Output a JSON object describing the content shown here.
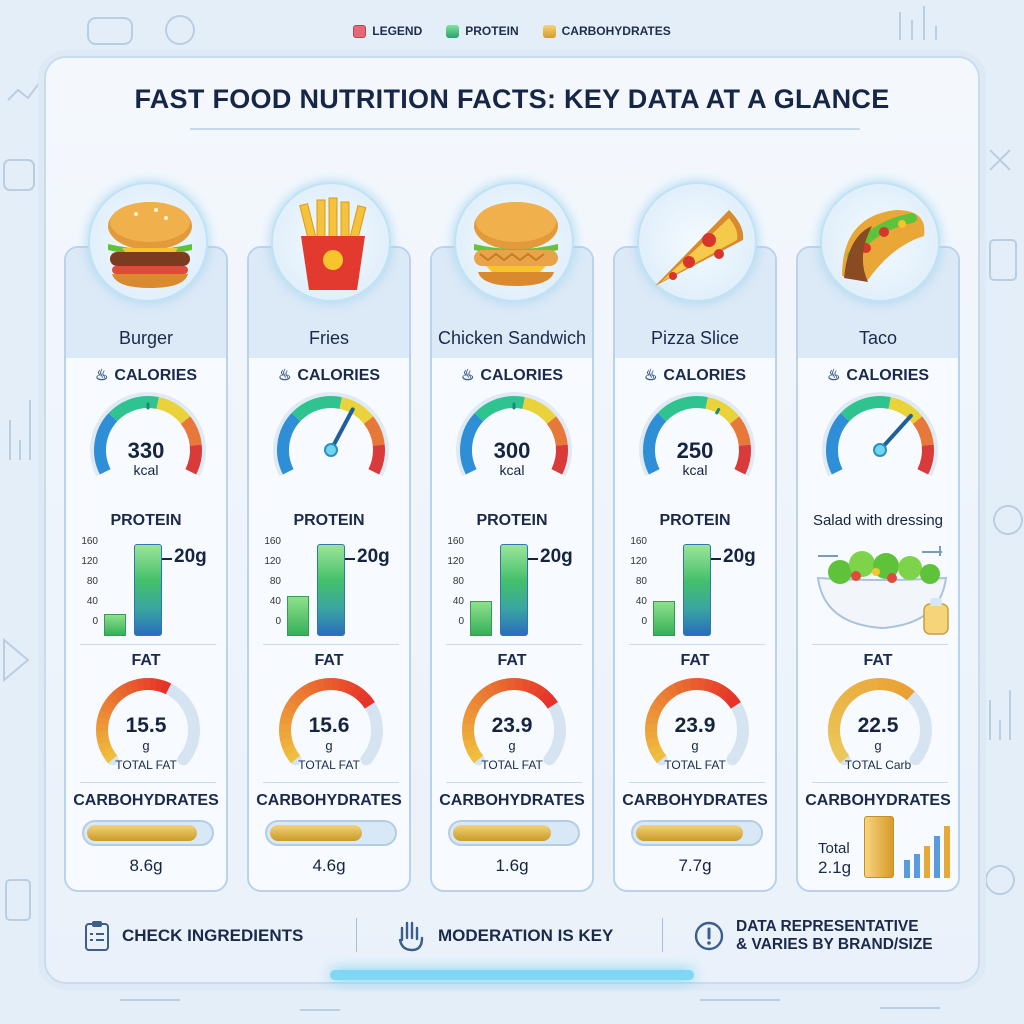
{
  "legend": [
    {
      "label": "LEGEND",
      "color": "#e06a7a"
    },
    {
      "label": "PROTEIN",
      "color": "#3cc07a"
    },
    {
      "label": "CARBOHYDRATES",
      "color": "#e8b84a"
    }
  ],
  "title": "FAST FOOD NUTRITION FACTS: KEY DATA AT A GLANCE",
  "labels": {
    "calories": "CALORIES",
    "protein": "PROTEIN",
    "fat": "FAT",
    "carbohydrates": "CARBOHYDRATES",
    "kcal": "kcal",
    "g": "g",
    "total_fat": "TOTAL FAT",
    "total_carb": "TOTAL Carb",
    "salad": "Salad with dressing",
    "taco_total": "Total"
  },
  "protein_ticks": [
    "160",
    "120",
    "80",
    "40",
    "0"
  ],
  "foods": [
    {
      "name": "Burger",
      "calories": "330",
      "calorie_level": 0.5,
      "protein": "20g",
      "protein_small": 22,
      "fat": "15.5",
      "fat_level": 0.6,
      "carbs": "8.6g",
      "carb_level": 0.9
    },
    {
      "name": "Fries",
      "calories": "",
      "calorie_level": 0.62,
      "protein": "20g",
      "protein_small": 40,
      "fat": "15.6",
      "fat_level": 0.72,
      "carbs": "4.6g",
      "carb_level": 0.75
    },
    {
      "name": "Chicken Sandwich",
      "calories": "300",
      "calorie_level": 0.5,
      "protein": "20g",
      "protein_small": 35,
      "fat": "23.9",
      "fat_level": 0.72,
      "carbs": "1.6g",
      "carb_level": 0.8
    },
    {
      "name": "Pizza Slice",
      "calories": "250",
      "calorie_level": 0.62,
      "protein": "20g",
      "protein_small": 35,
      "fat": "23.9",
      "fat_level": 0.72,
      "carbs": "7.7g",
      "carb_level": 0.88
    },
    {
      "name": "Taco",
      "calories": "",
      "calorie_level": 0.68,
      "fat": "22.5",
      "fat_level": 0.66,
      "carbs": "2.1g"
    }
  ],
  "footer": {
    "check": "CHECK INGREDIENTS",
    "moderation": "MODERATION IS KEY",
    "data_line1": "DATA REPRESENTATIVE",
    "data_line2": "& VARIES BY BRAND/SIZE"
  }
}
